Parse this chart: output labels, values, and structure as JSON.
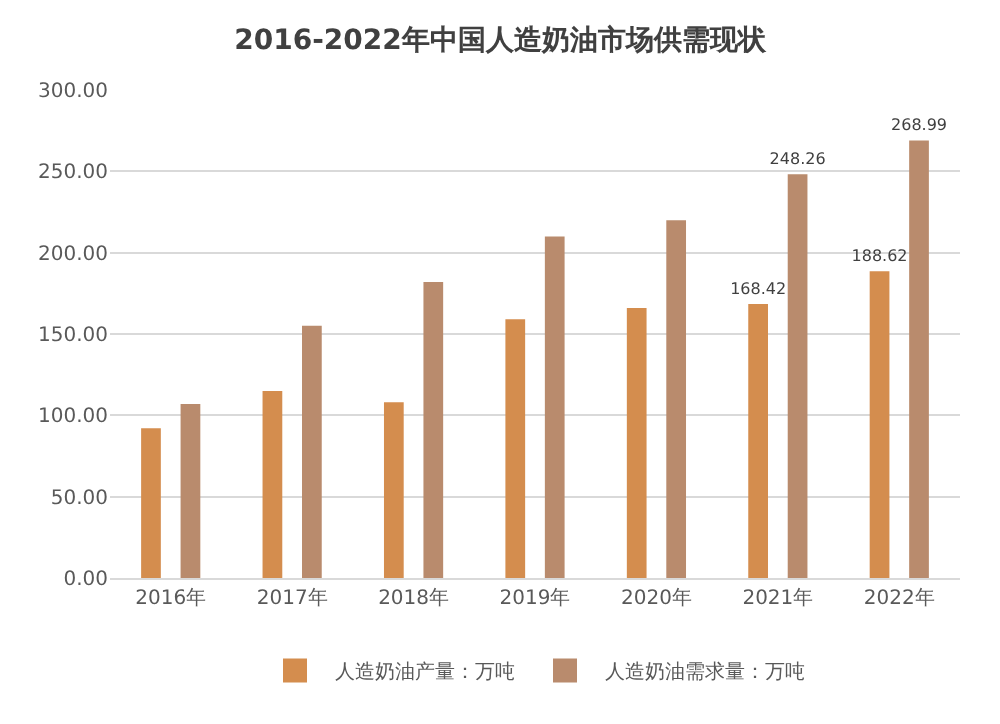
{
  "chart_data": {
    "type": "bar",
    "title": "2016-2022年中国人造奶油市场供需现状",
    "categories": [
      "2016年",
      "2017年",
      "2018年",
      "2019年",
      "2020年",
      "2021年",
      "2022年"
    ],
    "series": [
      {
        "name": "人造奶油产量：万吨",
        "color": "#d48d4e",
        "values": [
          92,
          115,
          108,
          159,
          166,
          168.42,
          188.62
        ],
        "value_labels": [
          null,
          null,
          null,
          null,
          null,
          "168.42",
          "188.62"
        ]
      },
      {
        "name": "人造奶油需求量：万吨",
        "color": "#b98b6d",
        "values": [
          107,
          155,
          182,
          210,
          220,
          248.26,
          268.99
        ],
        "value_labels": [
          null,
          null,
          null,
          null,
          null,
          "248.26",
          "268.99"
        ]
      }
    ],
    "ylim": [
      0,
      300
    ],
    "yticks": [
      {
        "value": 0,
        "label": "0.00"
      },
      {
        "value": 50,
        "label": "50.00"
      },
      {
        "value": 100,
        "label": "100.00"
      },
      {
        "value": 150,
        "label": "150.00"
      },
      {
        "value": 200,
        "label": "200.00"
      },
      {
        "value": 250,
        "label": "250.00"
      },
      {
        "value": 300,
        "label": "300.00"
      }
    ],
    "grid": "y",
    "legend": "bottom"
  }
}
